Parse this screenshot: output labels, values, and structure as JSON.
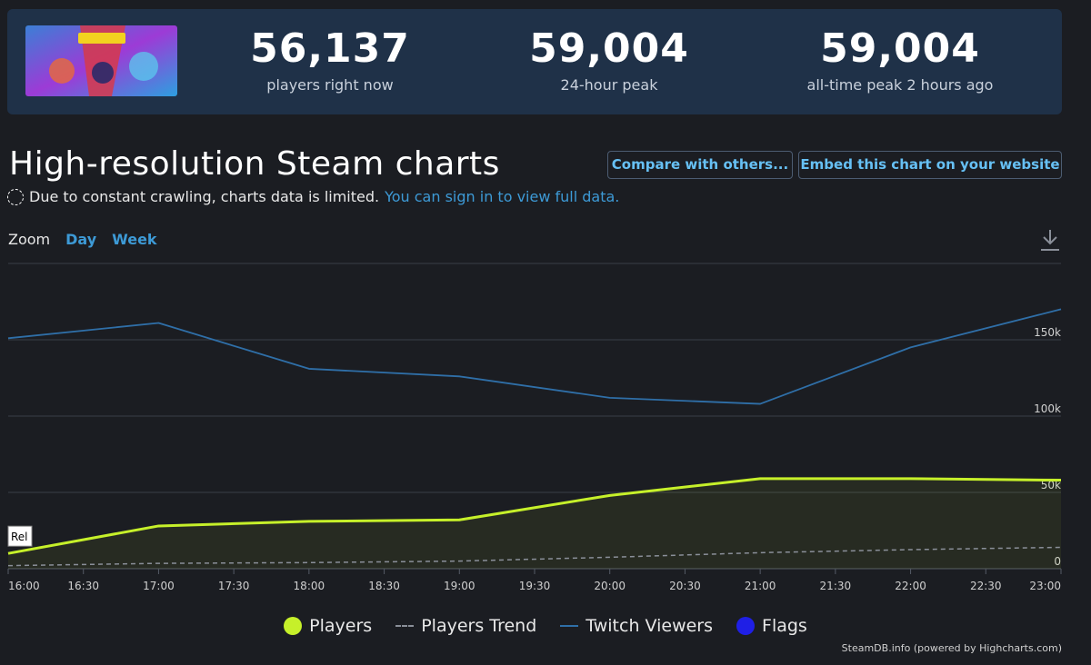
{
  "stats": {
    "current": {
      "value": "56,137",
      "label": "players right now"
    },
    "peak24": {
      "value": "59,004",
      "label": "24-hour peak"
    },
    "alltime": {
      "value": "59,004",
      "label": "all-time peak 2 hours ago"
    }
  },
  "header": {
    "title": "High-resolution Steam charts",
    "compare_button": "Compare with others...",
    "embed_button": "Embed this chart on your website"
  },
  "notice": {
    "text": "Due to constant crawling, charts data is limited.",
    "link": "You can sign in to view full data."
  },
  "zoom": {
    "label": "Zoom",
    "options": [
      "Day",
      "Week"
    ]
  },
  "legend": {
    "players": "Players",
    "trend": "Players Trend",
    "twitch": "Twitch Viewers",
    "flags": "Flags"
  },
  "colors": {
    "players": "#c6f02a",
    "trend": "#8a8f99",
    "twitch": "#2f6fa8",
    "flags": "#1f1fe6",
    "accent": "#66c0f4"
  },
  "credit": "SteamDB.info (powered by Highcharts.com)",
  "chart_data": {
    "type": "line",
    "x": [
      "16:00",
      "17:00",
      "18:00",
      "19:00",
      "20:00",
      "21:00",
      "22:00",
      "23:00"
    ],
    "x_tick_labels": [
      "16:00",
      "16:30",
      "17:00",
      "17:30",
      "18:00",
      "18:30",
      "19:00",
      "19:30",
      "20:00",
      "20:30",
      "21:00",
      "21:30",
      "22:00",
      "22:30",
      "23:00"
    ],
    "y_tick_labels": [
      "0",
      "50k",
      "100k",
      "150k"
    ],
    "ylim": [
      0,
      200000
    ],
    "grid": true,
    "legend_placement": "bottom",
    "flag_label": "Rel",
    "series": [
      {
        "name": "Players",
        "values": [
          10000,
          28000,
          31000,
          32000,
          48000,
          59000,
          59000,
          58000
        ]
      },
      {
        "name": "Players Trend",
        "values": [
          2000,
          3500,
          4000,
          5000,
          7500,
          10500,
          12500,
          14000
        ]
      },
      {
        "name": "Twitch Viewers",
        "values": [
          151000,
          161000,
          131000,
          126000,
          112000,
          108000,
          145000,
          170000
        ]
      }
    ]
  }
}
